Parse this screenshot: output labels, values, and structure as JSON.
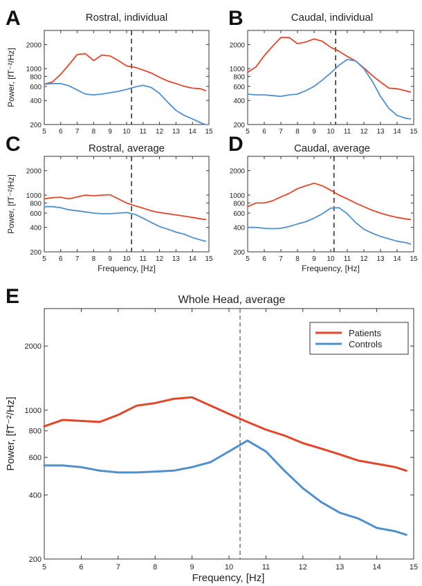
{
  "colors": {
    "patients": "#e2452a",
    "controls": "#4f8fce"
  },
  "chart_data": [
    {
      "id": "A",
      "type": "line",
      "panel_label": "A",
      "title": "Rostral, individual",
      "ylabel": "Power, [fT⁻²/Hz]",
      "xlabel": "",
      "xlim": [
        5,
        15
      ],
      "ylim": [
        200,
        3000
      ],
      "yscale": "log",
      "xticks": [
        5,
        6,
        7,
        8,
        9,
        10,
        11,
        12,
        13,
        14,
        15
      ],
      "yticks": [
        200,
        400,
        600,
        800,
        1000,
        2000
      ],
      "vline": 10.3,
      "series": [
        {
          "key": "patients",
          "x": [
            5,
            5.5,
            6,
            6.5,
            7,
            7.5,
            8,
            8.5,
            9,
            9.5,
            10,
            10.5,
            11,
            11.5,
            12,
            12.5,
            13,
            13.5,
            14,
            14.5,
            14.8
          ],
          "y": [
            640,
            680,
            850,
            1120,
            1500,
            1540,
            1260,
            1480,
            1440,
            1260,
            1080,
            1040,
            960,
            880,
            780,
            700,
            650,
            600,
            570,
            560,
            530
          ]
        },
        {
          "key": "controls",
          "x": [
            5,
            5.5,
            6,
            6.5,
            7,
            7.5,
            8,
            8.5,
            9,
            9.5,
            10,
            10.5,
            11,
            11.5,
            12,
            12.5,
            13,
            13.5,
            14,
            14.5,
            14.8
          ],
          "y": [
            640,
            650,
            650,
            610,
            540,
            480,
            470,
            480,
            500,
            520,
            550,
            590,
            620,
            580,
            490,
            380,
            300,
            260,
            235,
            210,
            200
          ]
        }
      ]
    },
    {
      "id": "B",
      "type": "line",
      "panel_label": "B",
      "title": "Caudal, individual",
      "ylabel": "",
      "xlabel": "",
      "xlim": [
        5,
        15
      ],
      "ylim": [
        200,
        3000
      ],
      "yscale": "log",
      "xticks": [
        5,
        6,
        7,
        8,
        9,
        10,
        11,
        12,
        13,
        14,
        15
      ],
      "yticks": [
        200,
        400,
        600,
        800,
        1000,
        2000
      ],
      "vline": 10.3,
      "series": [
        {
          "key": "patients",
          "x": [
            5,
            5.5,
            6,
            6.5,
            7,
            7.5,
            8,
            8.5,
            9,
            9.5,
            10,
            10.5,
            11,
            11.5,
            12,
            12.5,
            13,
            13.5,
            14,
            14.5,
            14.8
          ],
          "y": [
            900,
            1050,
            1450,
            1900,
            2450,
            2450,
            2050,
            2150,
            2350,
            2200,
            1850,
            1650,
            1420,
            1250,
            1020,
            820,
            680,
            570,
            560,
            530,
            510
          ]
        },
        {
          "key": "controls",
          "x": [
            5,
            5.5,
            6,
            6.5,
            7,
            7.5,
            8,
            8.5,
            9,
            9.5,
            10,
            10.5,
            11,
            11.5,
            12,
            12.5,
            13,
            13.5,
            14,
            14.5,
            14.8
          ],
          "y": [
            480,
            470,
            470,
            460,
            450,
            470,
            480,
            530,
            600,
            720,
            880,
            1100,
            1300,
            1250,
            1000,
            700,
            450,
            320,
            260,
            240,
            235
          ]
        }
      ]
    },
    {
      "id": "C",
      "type": "line",
      "panel_label": "C",
      "title": "Rostral, average",
      "ylabel": "Power, [fT⁻²/Hz]",
      "xlabel": "Frequency, [Hz]",
      "xlim": [
        5,
        15
      ],
      "ylim": [
        200,
        3000
      ],
      "yscale": "log",
      "xticks": [
        5,
        6,
        7,
        8,
        9,
        10,
        11,
        12,
        13,
        14,
        15
      ],
      "yticks": [
        200,
        400,
        600,
        800,
        1000,
        2000
      ],
      "vline": 10.3,
      "series": [
        {
          "key": "patients",
          "x": [
            5,
            5.5,
            6,
            6.5,
            7,
            7.5,
            8,
            8.5,
            9,
            9.5,
            10,
            10.5,
            11,
            11.5,
            12,
            12.5,
            13,
            13.5,
            14,
            14.5,
            14.8
          ],
          "y": [
            900,
            930,
            940,
            900,
            950,
            1000,
            980,
            1000,
            1010,
            900,
            800,
            740,
            690,
            640,
            610,
            590,
            570,
            550,
            530,
            510,
            500
          ]
        },
        {
          "key": "controls",
          "x": [
            5,
            5.5,
            6,
            6.5,
            7,
            7.5,
            8,
            8.5,
            9,
            9.5,
            10,
            10.5,
            11,
            11.5,
            12,
            12.5,
            13,
            13.5,
            14,
            14.5,
            14.8
          ],
          "y": [
            720,
            720,
            700,
            660,
            640,
            620,
            600,
            590,
            590,
            600,
            610,
            580,
            520,
            460,
            410,
            380,
            350,
            330,
            300,
            280,
            270
          ]
        }
      ]
    },
    {
      "id": "D",
      "type": "line",
      "panel_label": "D",
      "title": "Caudal, average",
      "ylabel": "",
      "xlabel": "Frequency, [Hz]",
      "xlim": [
        5,
        15
      ],
      "ylim": [
        200,
        3000
      ],
      "yscale": "log",
      "xticks": [
        5,
        6,
        7,
        8,
        9,
        10,
        11,
        12,
        13,
        14,
        15
      ],
      "yticks": [
        200,
        400,
        600,
        800,
        1000,
        2000
      ],
      "vline": 10.2,
      "series": [
        {
          "key": "patients",
          "x": [
            5,
            5.5,
            6,
            6.5,
            7,
            7.5,
            8,
            8.5,
            9,
            9.5,
            10,
            10.5,
            11,
            11.5,
            12,
            12.5,
            13,
            13.5,
            14,
            14.5,
            14.8
          ],
          "y": [
            720,
            800,
            800,
            850,
            950,
            1050,
            1200,
            1300,
            1400,
            1300,
            1150,
            1000,
            900,
            800,
            720,
            650,
            600,
            560,
            530,
            510,
            500
          ]
        },
        {
          "key": "controls",
          "x": [
            5,
            5.5,
            6,
            6.5,
            7,
            7.5,
            8,
            8.5,
            9,
            9.5,
            10,
            10.5,
            11,
            11.5,
            12,
            12.5,
            13,
            13.5,
            14,
            14.5,
            14.8
          ],
          "y": [
            400,
            400,
            390,
            385,
            390,
            410,
            440,
            470,
            520,
            590,
            690,
            700,
            590,
            460,
            380,
            340,
            310,
            290,
            270,
            260,
            250
          ]
        }
      ]
    },
    {
      "id": "E",
      "type": "line",
      "panel_label": "E",
      "title": "Whole Head, average",
      "ylabel": "Power, [fT⁻²/Hz]",
      "xlabel": "Frequency, [Hz]",
      "xlim": [
        5,
        15
      ],
      "ylim": [
        200,
        3000
      ],
      "yscale": "log",
      "xticks": [
        5,
        6,
        7,
        8,
        9,
        10,
        11,
        12,
        13,
        14,
        15
      ],
      "yticks": [
        200,
        400,
        600,
        800,
        1000,
        2000
      ],
      "vline": 10.3,
      "legend": {
        "position": "top-right",
        "entries": [
          {
            "key": "patients",
            "label": "Patients"
          },
          {
            "key": "controls",
            "label": "Controls"
          }
        ]
      },
      "series": [
        {
          "key": "patients",
          "name": "Patients",
          "x": [
            5,
            5.5,
            6,
            6.5,
            7,
            7.5,
            8,
            8.5,
            9,
            9.5,
            10,
            10.5,
            11,
            11.5,
            12,
            12.5,
            13,
            13.5,
            14,
            14.5,
            14.8
          ],
          "y": [
            840,
            900,
            890,
            880,
            950,
            1050,
            1080,
            1130,
            1150,
            1050,
            960,
            880,
            810,
            760,
            700,
            660,
            620,
            580,
            560,
            540,
            520
          ]
        },
        {
          "key": "controls",
          "name": "Controls",
          "x": [
            5,
            5.5,
            6,
            6.5,
            7,
            7.5,
            8,
            8.5,
            9,
            9.5,
            10,
            10.5,
            11,
            11.5,
            12,
            12.5,
            13,
            13.5,
            14,
            14.5,
            14.8
          ],
          "y": [
            550,
            550,
            540,
            520,
            510,
            510,
            515,
            520,
            540,
            570,
            640,
            720,
            640,
            520,
            430,
            370,
            330,
            310,
            280,
            270,
            260
          ]
        }
      ]
    }
  ]
}
